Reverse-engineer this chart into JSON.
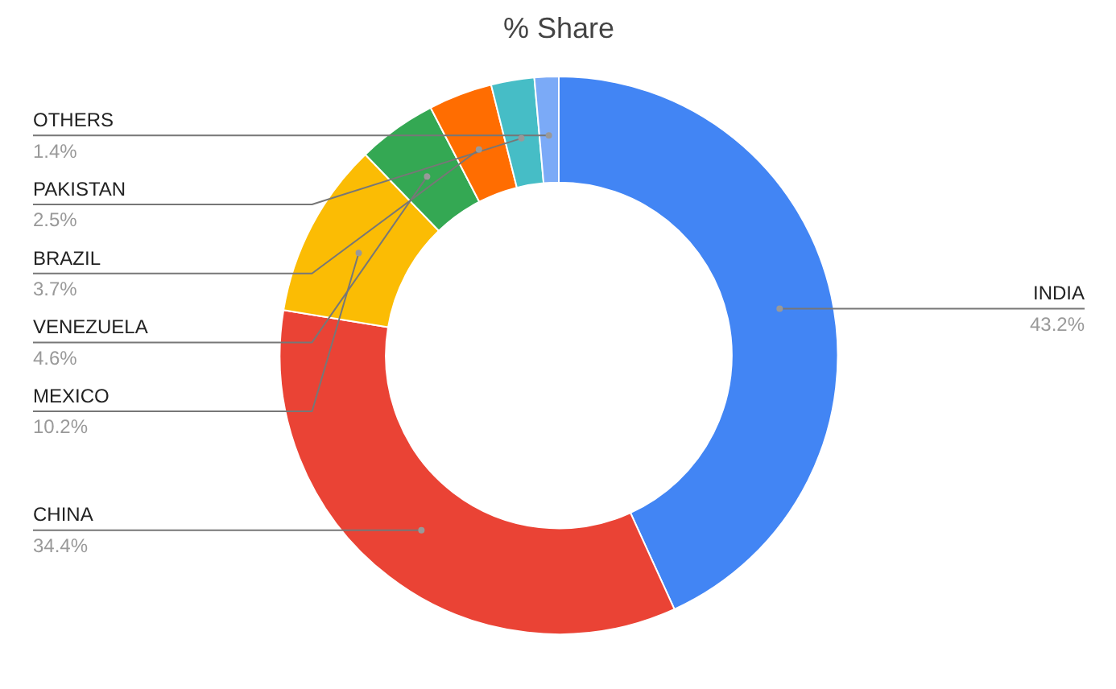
{
  "chart_data": {
    "type": "donut",
    "title": "% Share",
    "categories": [
      "INDIA",
      "CHINA",
      "MEXICO",
      "VENEZUELA",
      "BRAZIL",
      "PAKISTAN",
      "OTHERS"
    ],
    "values": [
      43.2,
      34.4,
      10.2,
      4.6,
      3.7,
      2.5,
      1.4
    ],
    "value_labels": [
      "43.2%",
      "34.4%",
      "10.2%",
      "4.6%",
      "3.7%",
      "2.5%",
      "1.4%"
    ],
    "colors": [
      "#4285f4",
      "#ea4335",
      "#fbbc04",
      "#34a853",
      "#ff6d01",
      "#46bdc6",
      "#7baaf7"
    ],
    "legend": false
  }
}
